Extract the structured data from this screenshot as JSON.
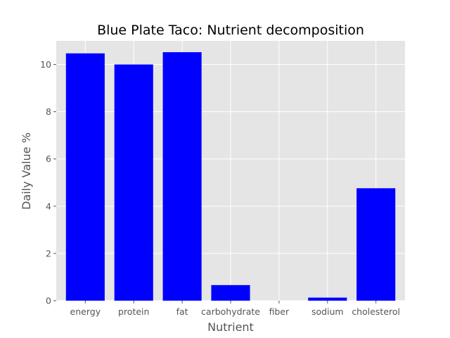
{
  "chart_data": {
    "type": "bar",
    "title": "Blue Plate Taco: Nutrient decomposition",
    "xlabel": "Nutrient",
    "ylabel": "Daily Value %",
    "categories": [
      "energy",
      "protein",
      "fat",
      "carbohydrate",
      "fiber",
      "sodium",
      "cholesterol"
    ],
    "values": [
      10.47,
      10.0,
      10.52,
      0.66,
      0.0,
      0.13,
      4.76
    ],
    "ylim": [
      0,
      11
    ],
    "yticks": [
      0,
      2,
      4,
      6,
      8,
      10
    ],
    "grid": true,
    "style": "ggplot",
    "colors": {
      "bar": "#0000ff",
      "plot_background": "#e5e5e5",
      "grid": "#ffffff",
      "figure_background": "#ffffff"
    }
  }
}
